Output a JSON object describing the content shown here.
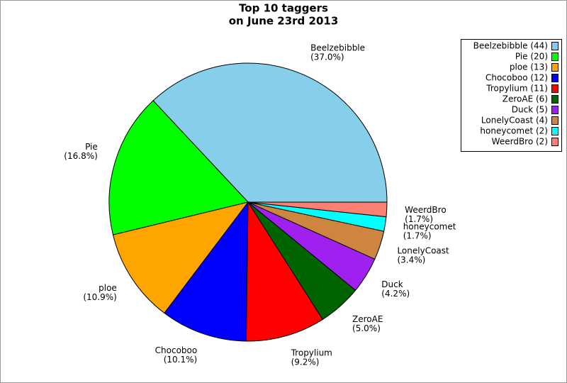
{
  "chart_data": {
    "type": "pie",
    "title": "Top 10 taggers",
    "subtitle": "on June 23rd 2013",
    "categories": [
      "Beelzebibble",
      "Pie",
      "ploe",
      "Chocoboo",
      "Tropylium",
      "ZeroAE",
      "Duck",
      "LonelyCoast",
      "honeycomet",
      "WeerdBro"
    ],
    "values": [
      44,
      20,
      13,
      12,
      11,
      6,
      5,
      4,
      2,
      2
    ],
    "percent_labels": [
      "(37.0%)",
      "(16.8%)",
      "(10.9%)",
      "(10.1%)",
      "(9.2%)",
      "(5.0%)",
      "(4.2%)",
      "(3.4%)",
      "(1.7%)",
      "(1.7%)"
    ],
    "legend_labels": [
      "Beelzebibble (44)",
      "Pie (20)",
      "ploe (13)",
      "Chocoboo (12)",
      "Tropylium (11)",
      "ZeroAE (6)",
      "Duck (5)",
      "LonelyCoast (4)",
      "honeycomet (2)",
      "WeerdBro (2)"
    ],
    "colors": [
      "#87ceeb",
      "#00ff00",
      "#ffa500",
      "#0000ff",
      "#ff0000",
      "#006400",
      "#a020f0",
      "#cd853f",
      "#00ffff",
      "#fa8072"
    ],
    "legend": "upper right"
  }
}
